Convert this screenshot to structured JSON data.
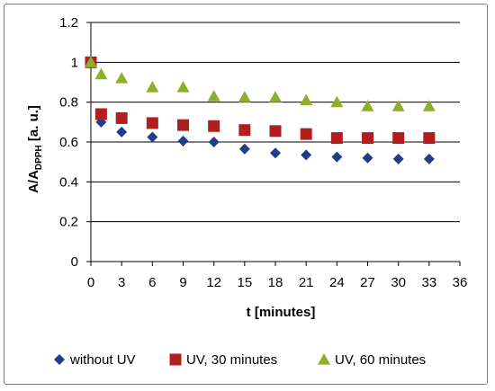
{
  "chart_data": {
    "type": "scatter",
    "xlabel": "t [minutes]",
    "ylabel": {
      "main": "A/A",
      "sub": "DPPH",
      "unit": " [a. u.]"
    },
    "xlim": [
      0,
      36
    ],
    "ylim": [
      0,
      1.2
    ],
    "x_ticks": [
      "0",
      "3",
      "6",
      "9",
      "12",
      "15",
      "18",
      "21",
      "24",
      "27",
      "30",
      "33",
      "36"
    ],
    "y_ticks": [
      "0",
      "0.2",
      "0.4",
      "0.6",
      "0.8",
      "1",
      "1.2"
    ],
    "grid": "horizontal",
    "legend_position": "bottom",
    "series": [
      {
        "name": "without UV",
        "marker": "diamond",
        "color": "#1f3d8c",
        "x": [
          0,
          1,
          3,
          6,
          9,
          12,
          15,
          18,
          21,
          24,
          27,
          30,
          33
        ],
        "y": [
          1.0,
          0.7,
          0.65,
          0.625,
          0.605,
          0.6,
          0.565,
          0.545,
          0.535,
          0.525,
          0.52,
          0.515,
          0.515
        ]
      },
      {
        "name": "UV, 30 minutes",
        "marker": "square",
        "color": "#b01e1e",
        "x": [
          0,
          1,
          3,
          6,
          9,
          12,
          15,
          18,
          21,
          24,
          27,
          30,
          33
        ],
        "y": [
          1.0,
          0.74,
          0.72,
          0.695,
          0.685,
          0.68,
          0.66,
          0.655,
          0.64,
          0.62,
          0.62,
          0.62,
          0.62
        ]
      },
      {
        "name": "UV, 60 minutes",
        "marker": "triangle",
        "color": "#8cb02a",
        "x": [
          0,
          1,
          3,
          6,
          9,
          12,
          15,
          18,
          21,
          24,
          27,
          30,
          33
        ],
        "y": [
          1.0,
          0.94,
          0.92,
          0.875,
          0.875,
          0.83,
          0.825,
          0.825,
          0.81,
          0.8,
          0.78,
          0.78,
          0.78
        ]
      }
    ]
  }
}
